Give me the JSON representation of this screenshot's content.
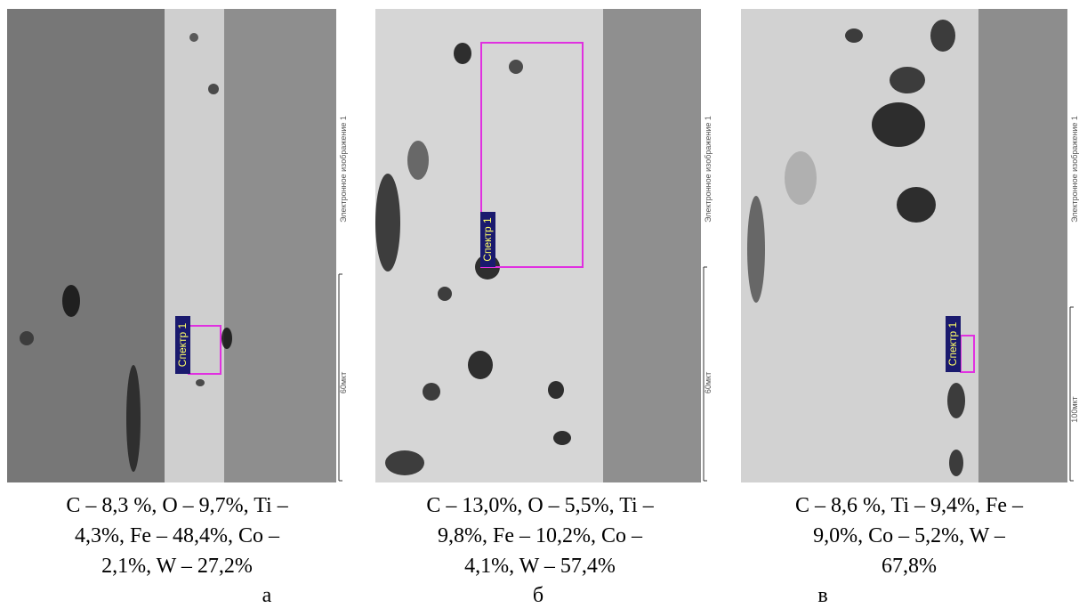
{
  "panels": [
    {
      "tag": "Спектр 1",
      "side_label": "Электронное изображение 1",
      "scale_label": "60мкт",
      "caption": [
        "C – 8,3 %, O – 9,7%, Ti –",
        "4,3%, Fe – 48,4%, Co –",
        "2,1%,  W – 27,2%"
      ],
      "letter": "а"
    },
    {
      "tag": "Спектр 1",
      "side_label": "Электронное изображение 1",
      "scale_label": "60мкт",
      "caption": [
        "C – 13,0%, O – 5,5%, Ti –",
        "9,8%, Fe – 10,2%, Co –",
        "4,1%,  W – 57,4%"
      ],
      "letter": "б"
    },
    {
      "tag": "Спектр 1",
      "side_label": "Электронное изображение 1",
      "scale_label": "100мкт",
      "caption": [
        "C – 8,6 %, Ti – 9,4%, Fe –",
        "9,0%, Co – 5,2%,  W –",
        "67,8%"
      ],
      "letter": "в"
    }
  ]
}
